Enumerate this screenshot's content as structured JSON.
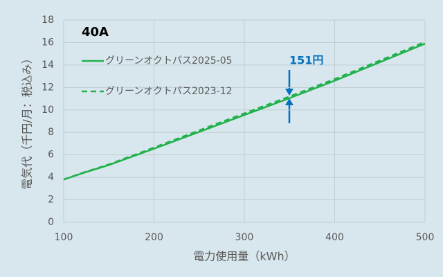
{
  "chart_data": {
    "type": "line",
    "title": "40A",
    "annotation": "151円",
    "x_label": "電力使用量（kWh）",
    "y_label": "電気代（千円/月：税込み）",
    "x": [
      100,
      120,
      150,
      200,
      250,
      300,
      350,
      400,
      450,
      500
    ],
    "series": [
      {
        "name": "グリーンオクトパス2025-05",
        "color": "#22b14c",
        "style": "solid",
        "values": [
          3.8,
          4.35,
          5.1,
          6.55,
          8.05,
          9.55,
          11.05,
          12.6,
          14.25,
          15.9
        ]
      },
      {
        "name": "グリーンオクトパス2023-12",
        "color": "#22b14c",
        "style": "dashed",
        "values": [
          3.8,
          4.38,
          5.15,
          6.65,
          8.18,
          9.7,
          11.2,
          12.75,
          14.4,
          16.05
        ]
      }
    ],
    "xlim": [
      100,
      500
    ],
    "xticks": [
      100,
      200,
      300,
      400,
      500
    ],
    "ylim": [
      0,
      18
    ],
    "yticks": [
      0,
      2,
      4,
      6,
      8,
      10,
      12,
      14,
      16,
      18
    ],
    "grid": true
  }
}
